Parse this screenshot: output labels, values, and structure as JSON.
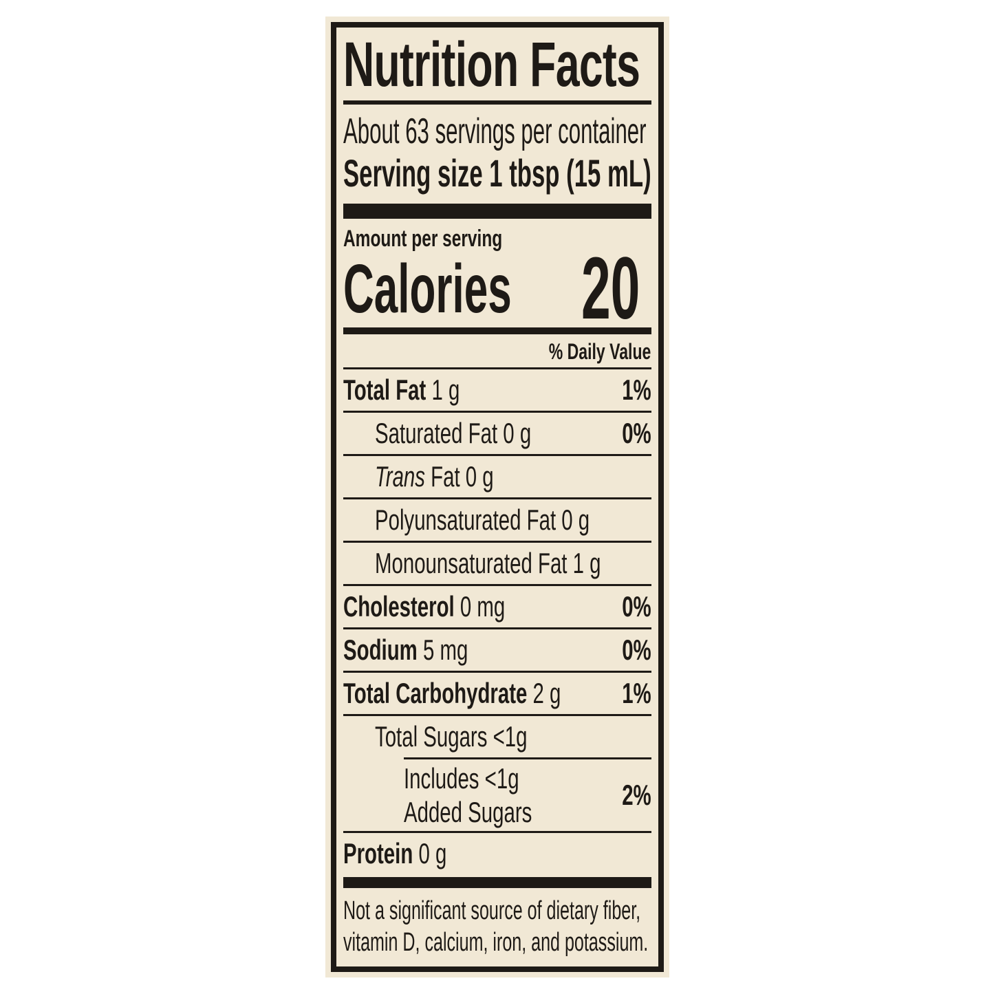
{
  "label": {
    "colors": {
      "background": "#f1e8d5",
      "ink": "#1e1a16",
      "page": "#ffffff"
    },
    "title": "Nutrition Facts",
    "servings_per_container": "About 63 servings per container",
    "serving_size": "Serving size 1 tbsp (15 mL)",
    "amount_per_serving": "Amount per serving",
    "calories_label": "Calories",
    "calories_value": "20",
    "daily_value_header": "% Daily Value",
    "rows": [
      {
        "segments": [
          {
            "text": "Total Fat",
            "style": "bold"
          },
          {
            "text": " 1 g",
            "style": "plain"
          }
        ],
        "dv": "1%",
        "indent": 0,
        "rule_after": "full"
      },
      {
        "segments": [
          {
            "text": "Saturated Fat 0 g",
            "style": "plain"
          }
        ],
        "dv": "0%",
        "indent": 1,
        "rule_after": "full"
      },
      {
        "segments": [
          {
            "text": "Trans",
            "style": "italic"
          },
          {
            "text": " Fat 0 g",
            "style": "plain"
          }
        ],
        "dv": "",
        "indent": 1,
        "rule_after": "full"
      },
      {
        "segments": [
          {
            "text": "Polyunsaturated Fat 0 g",
            "style": "plain"
          }
        ],
        "dv": "",
        "indent": 1,
        "rule_after": "full"
      },
      {
        "segments": [
          {
            "text": "Monounsaturated Fat 1 g",
            "style": "plain"
          }
        ],
        "dv": "",
        "indent": 1,
        "rule_after": "full"
      },
      {
        "segments": [
          {
            "text": "Cholesterol",
            "style": "bold"
          },
          {
            "text": " 0 mg",
            "style": "plain"
          }
        ],
        "dv": "0%",
        "indent": 0,
        "rule_after": "full"
      },
      {
        "segments": [
          {
            "text": "Sodium",
            "style": "bold"
          },
          {
            "text": " 5 mg",
            "style": "plain"
          }
        ],
        "dv": "0%",
        "indent": 0,
        "rule_after": "full"
      },
      {
        "segments": [
          {
            "text": "Total Carbohydrate",
            "style": "bold"
          },
          {
            "text": " 2 g",
            "style": "plain"
          }
        ],
        "dv": "1%",
        "indent": 0,
        "rule_after": "full"
      },
      {
        "segments": [
          {
            "text": "Total Sugars <1g",
            "style": "plain"
          }
        ],
        "dv": "",
        "indent": 1,
        "rule_after": "partial"
      },
      {
        "lines": [
          "Includes <1g",
          "Added Sugars"
        ],
        "dv": "2%",
        "indent": 2,
        "rule_after": "full"
      },
      {
        "segments": [
          {
            "text": "Protein",
            "style": "bold"
          },
          {
            "text": " 0 g",
            "style": "plain"
          }
        ],
        "dv": "",
        "indent": 0,
        "rule_after": "none"
      }
    ],
    "footnote": [
      "Not a significant source of dietary fiber,",
      "vitamin D, calcium, iron, and potassium."
    ]
  }
}
